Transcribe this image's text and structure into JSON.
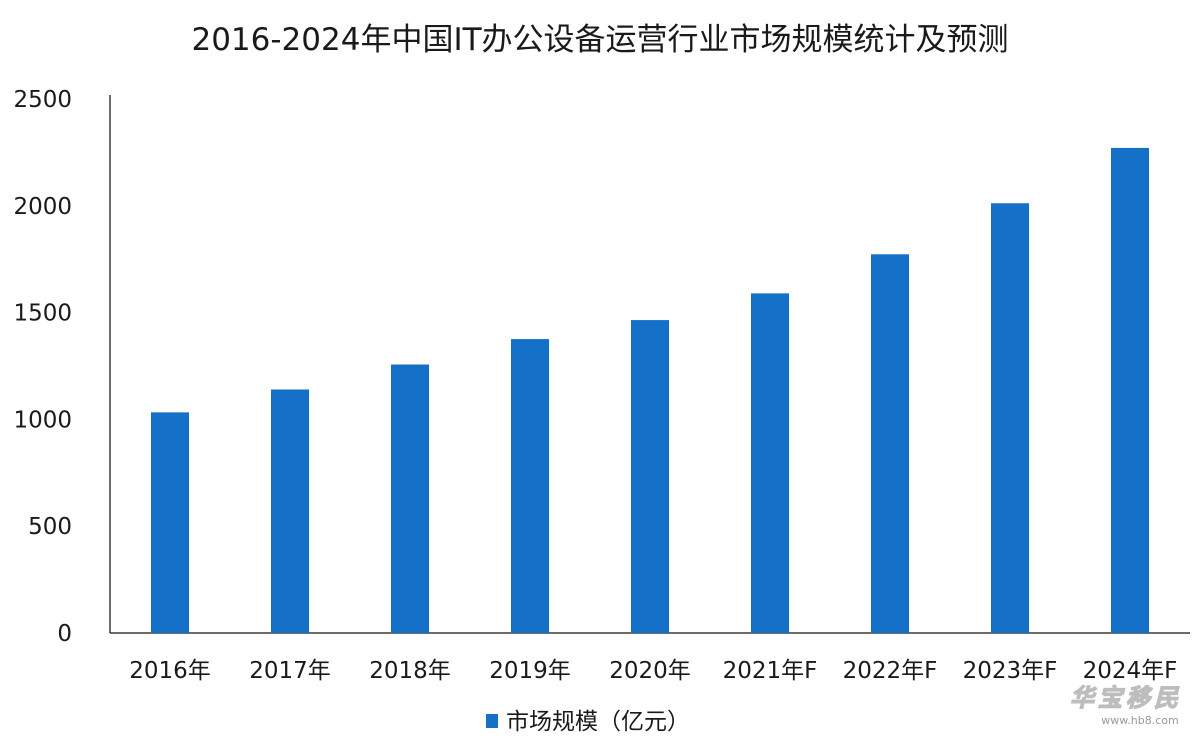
{
  "chart_data": {
    "type": "bar",
    "title": "2016-2024年中国IT办公设备运营行业市场规模统计及预测",
    "categories": [
      "2016年",
      "2017年",
      "2018年",
      "2019年",
      "2020年",
      "2021年F",
      "2022年F",
      "2023年F",
      "2024年F"
    ],
    "series": [
      {
        "name": "市场规模（亿元）",
        "values": [
          1033,
          1140,
          1257,
          1376,
          1465,
          1590,
          1773,
          2012,
          2271
        ],
        "color": "#1570c8"
      }
    ],
    "ylim": [
      0,
      2500
    ],
    "yticks": [
      0,
      500,
      1000,
      1500,
      2000,
      2500
    ],
    "grid": false,
    "legend": "bottom-center"
  },
  "watermark": {
    "text": "华宝移民",
    "subtext": "www.hb8.com"
  }
}
